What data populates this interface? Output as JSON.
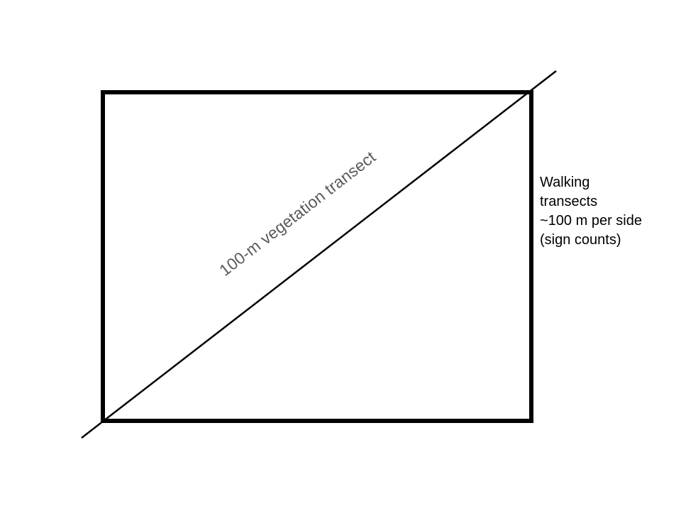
{
  "diagram": {
    "colors": {
      "background": "#ffffff",
      "border": "#000000",
      "transect_line": "#000000",
      "transect_label": "#5a5a5a",
      "side_label": "#000000"
    },
    "transect_label": "100-m vegetation transect",
    "side_label_lines": [
      "Walking",
      "transects",
      "~100 m per side",
      "(sign counts)"
    ]
  }
}
